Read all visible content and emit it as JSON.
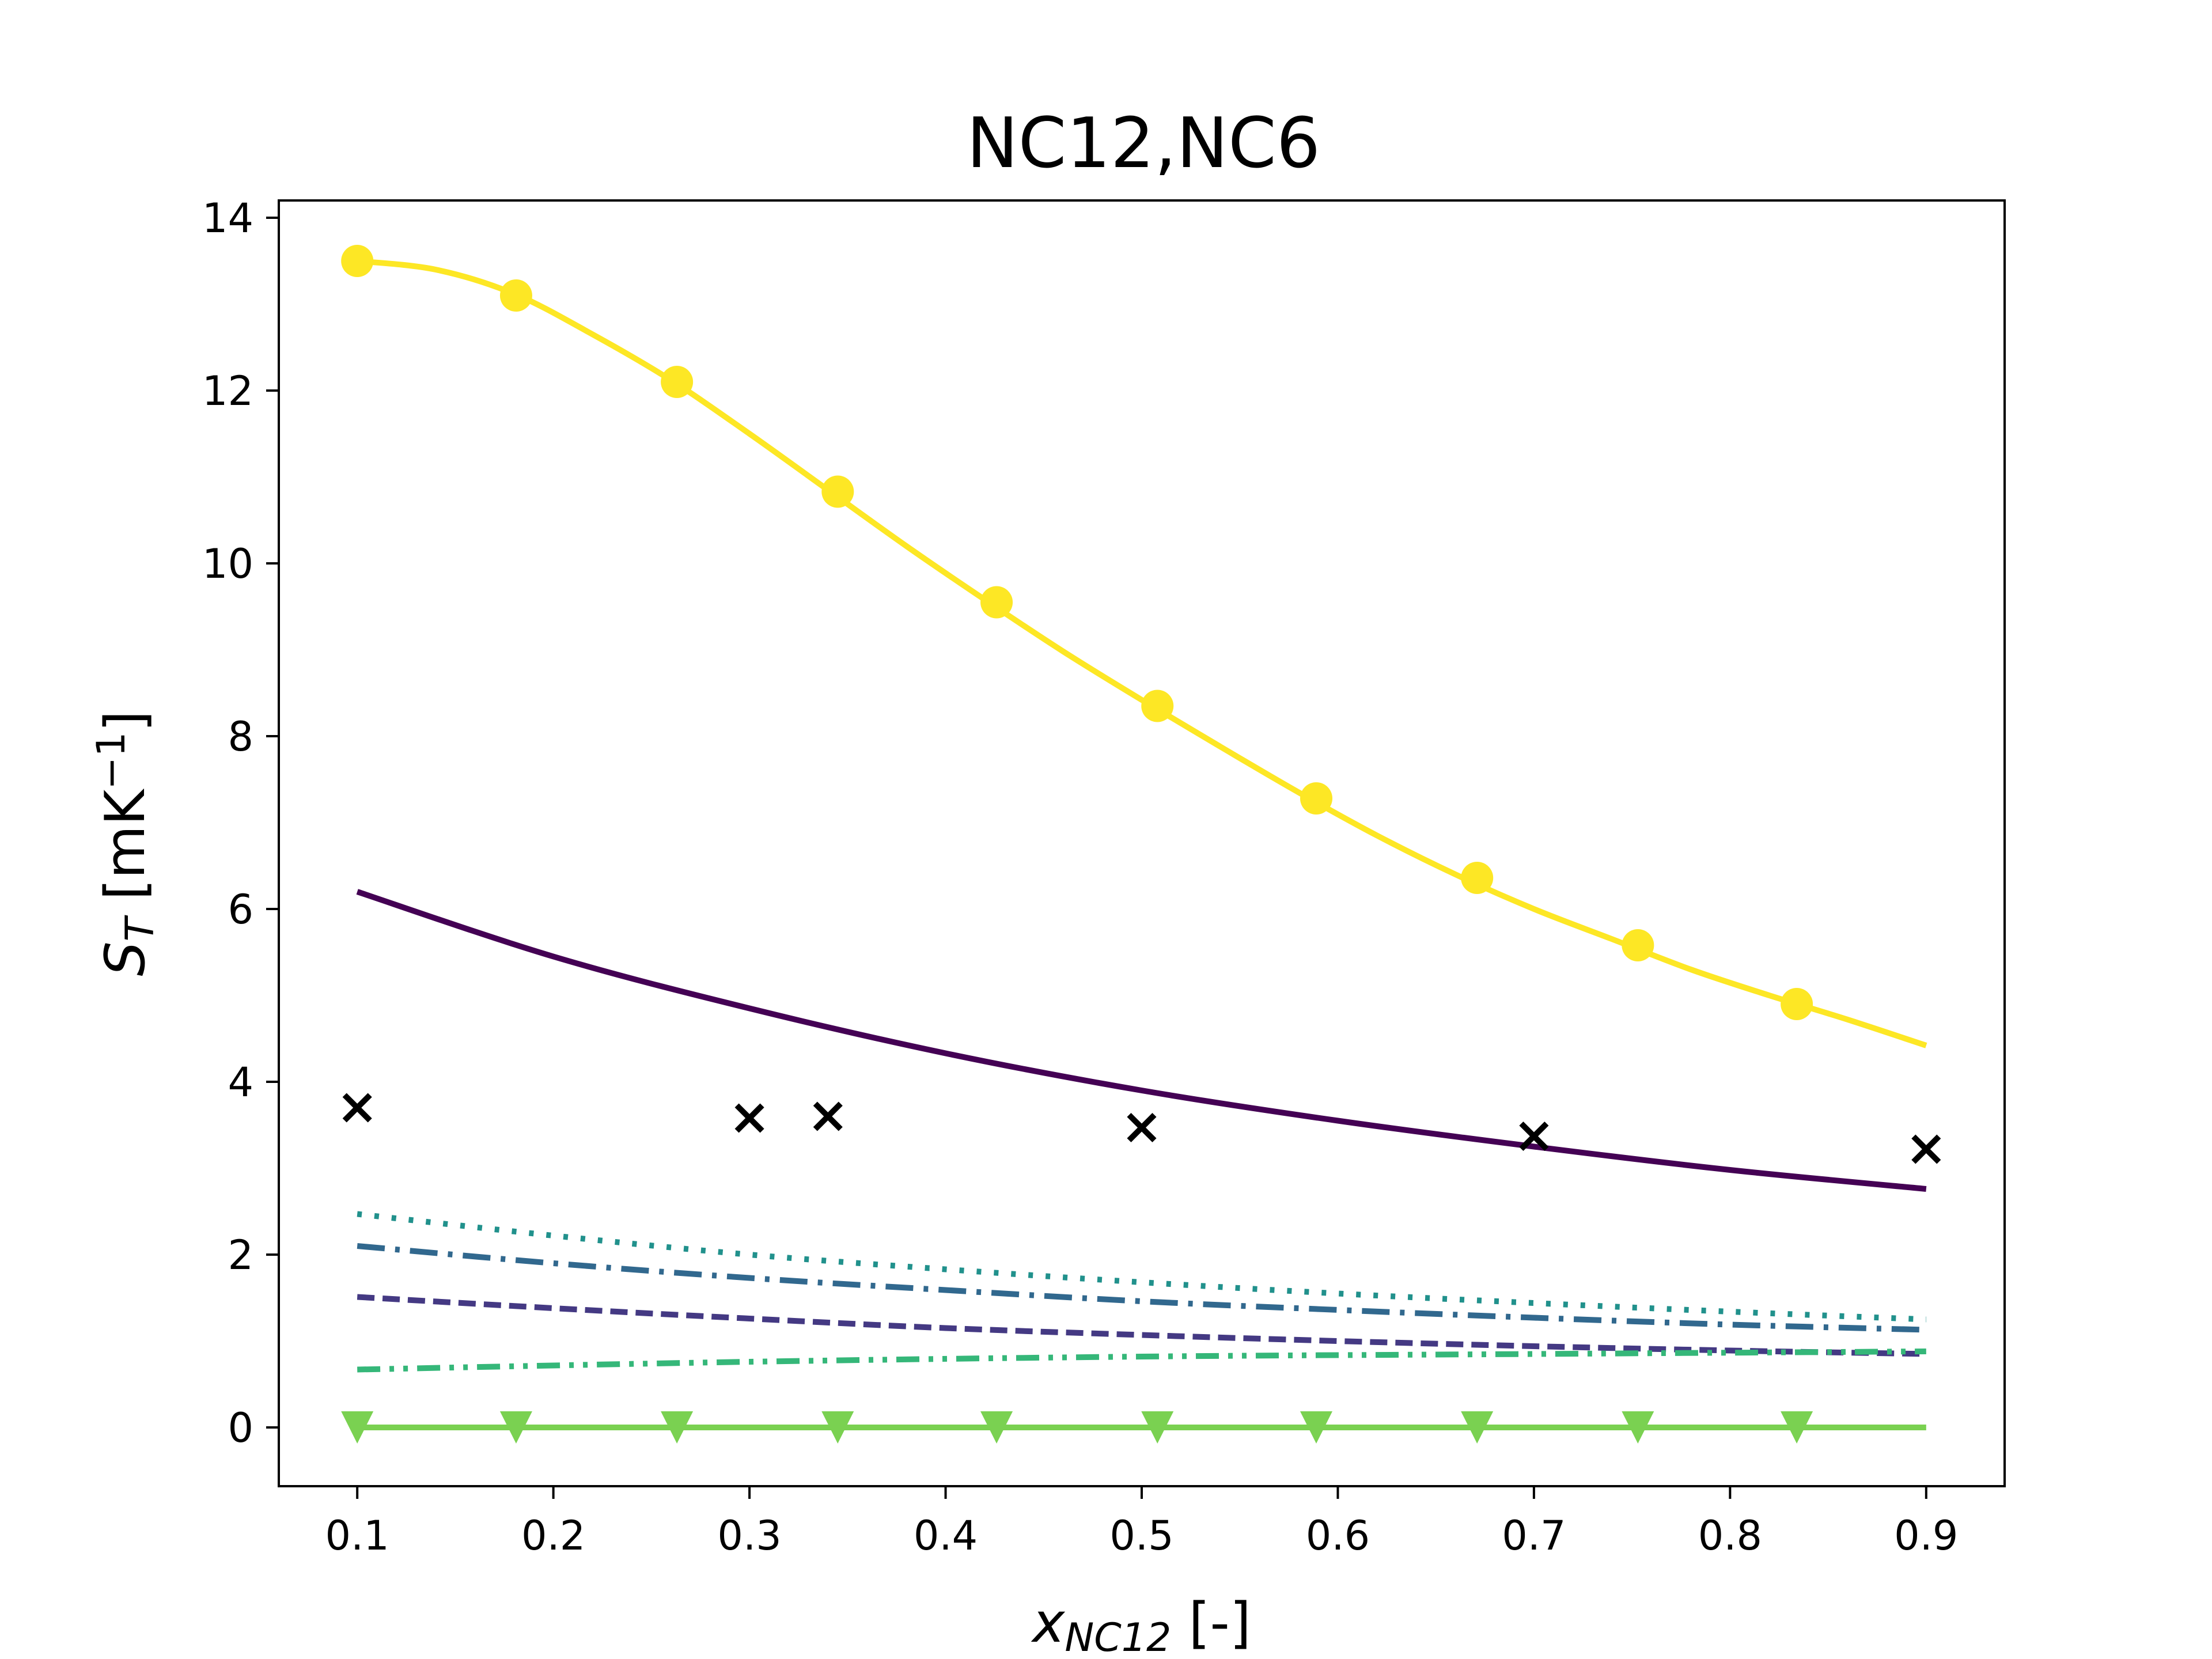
{
  "chart_data": {
    "type": "line",
    "title": "NC12,NC6",
    "xlabel": {
      "main": "x",
      "sub": "NC12",
      "suffix": " [-]"
    },
    "ylabel": {
      "main": "S",
      "sub": "T",
      "prefix": " [mK",
      "sup": "−1",
      "suffix": "]"
    },
    "xlim": [
      0.06,
      0.94
    ],
    "ylim": [
      -0.68,
      14.2
    ],
    "x_ticks": [
      0.1,
      0.2,
      0.3,
      0.4,
      0.5,
      0.6,
      0.7,
      0.8,
      0.9
    ],
    "x_tick_labels": [
      "0.1",
      "0.2",
      "0.3",
      "0.4",
      "0.5",
      "0.6",
      "0.7",
      "0.8",
      "0.9"
    ],
    "y_ticks": [
      0,
      2,
      4,
      6,
      8,
      10,
      12,
      14
    ],
    "y_tick_labels": [
      "0",
      "2",
      "4",
      "6",
      "8",
      "10",
      "12",
      "14"
    ],
    "grid": false,
    "series": [
      {
        "color": "#fde725",
        "style": "solid",
        "marker": "circle",
        "x": [
          0.1,
          0.14,
          0.18,
          0.22,
          0.26,
          0.3,
          0.34,
          0.38,
          0.42,
          0.46,
          0.5,
          0.54,
          0.58,
          0.62,
          0.66,
          0.7,
          0.74,
          0.78,
          0.82,
          0.86,
          0.9
        ],
        "y": [
          13.5,
          13.4,
          13.12,
          12.65,
          12.12,
          11.5,
          10.85,
          10.2,
          9.58,
          8.98,
          8.42,
          7.88,
          7.35,
          6.85,
          6.4,
          6.0,
          5.65,
          5.3,
          5.0,
          4.72,
          4.42
        ]
      },
      {
        "color": "#fde725",
        "style": "none",
        "marker": "circle",
        "x": [
          0.1,
          0.181,
          0.263,
          0.345,
          0.426,
          0.508,
          0.589,
          0.671,
          0.753,
          0.834
        ],
        "y": [
          13.5,
          13.1,
          12.1,
          10.83,
          9.55,
          8.35,
          7.28,
          6.36,
          5.58,
          4.9
        ]
      },
      {
        "color": "#440154",
        "style": "solid",
        "marker": "none",
        "x": [
          0.1,
          0.2,
          0.3,
          0.4,
          0.5,
          0.6,
          0.7,
          0.8,
          0.9
        ],
        "y": [
          6.2,
          5.45,
          4.85,
          4.33,
          3.9,
          3.55,
          3.25,
          2.98,
          2.76
        ]
      },
      {
        "color": "#000000",
        "style": "none",
        "marker": "x",
        "x": [
          0.1,
          0.3,
          0.34,
          0.5,
          0.7,
          0.9
        ],
        "y": [
          3.7,
          3.58,
          3.6,
          3.47,
          3.37,
          3.22
        ]
      },
      {
        "color": "#21918c",
        "style": "dotted",
        "marker": "none",
        "x": [
          0.1,
          0.2,
          0.3,
          0.4,
          0.5,
          0.6,
          0.7,
          0.8,
          0.9
        ],
        "y": [
          2.47,
          2.22,
          2.0,
          1.83,
          1.68,
          1.55,
          1.44,
          1.34,
          1.25
        ]
      },
      {
        "color": "#31688e",
        "style": "dashdot",
        "marker": "none",
        "x": [
          0.1,
          0.2,
          0.3,
          0.4,
          0.5,
          0.6,
          0.7,
          0.8,
          0.9
        ],
        "y": [
          2.1,
          1.9,
          1.73,
          1.59,
          1.46,
          1.36,
          1.27,
          1.19,
          1.13
        ]
      },
      {
        "color": "#443983",
        "style": "dashed",
        "marker": "none",
        "x": [
          0.1,
          0.2,
          0.3,
          0.4,
          0.5,
          0.6,
          0.7,
          0.8,
          0.9
        ],
        "y": [
          1.51,
          1.38,
          1.26,
          1.15,
          1.07,
          1.0,
          0.94,
          0.89,
          0.85
        ]
      },
      {
        "color": "#35b779",
        "style": "dashdotdot",
        "marker": "none",
        "x": [
          0.1,
          0.3,
          0.5,
          0.7,
          0.9
        ],
        "y": [
          0.67,
          0.76,
          0.82,
          0.85,
          0.88
        ]
      },
      {
        "color": "#7ad151",
        "style": "solid",
        "marker": "triangle-down",
        "x": [
          0.1,
          0.181,
          0.263,
          0.345,
          0.426,
          0.508,
          0.589,
          0.671,
          0.753,
          0.834,
          0.9
        ],
        "y": [
          0,
          0,
          0,
          0,
          0,
          0,
          0,
          0,
          0,
          0,
          0
        ]
      }
    ]
  }
}
